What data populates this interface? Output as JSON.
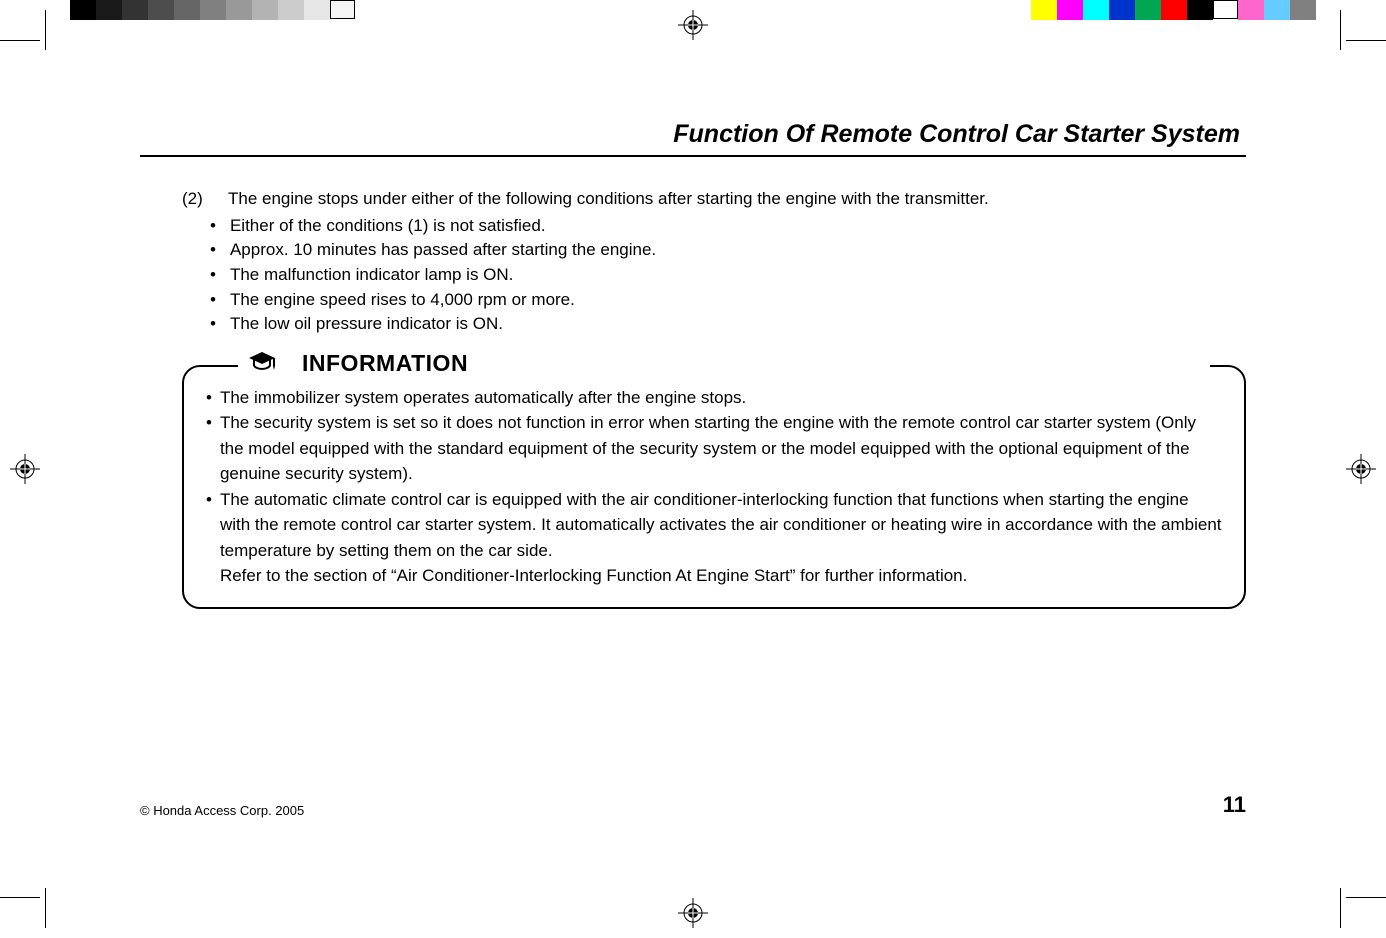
{
  "printMarks": {
    "grayBar": [
      "#000000",
      "#1a1a1a",
      "#333333",
      "#4d4d4d",
      "#666666",
      "#808080",
      "#999999",
      "#b3b3b3",
      "#cccccc",
      "#e6e6e6",
      "#f5f5f5"
    ],
    "grayBarOutlineLast": true,
    "colorBar": [
      "#ffff00",
      "#ff00ff",
      "#00ffff",
      "#0033cc",
      "#00a651",
      "#ff0000",
      "#000000",
      "#ffffff",
      "#ff66cc",
      "#66ccff",
      "#808080"
    ],
    "colorBarOutlineIndex": 7
  },
  "page": {
    "title": "Function Of Remote Control Car Starter System",
    "item": {
      "number": "(2)",
      "text": "The engine stops under either of the following conditions after starting the engine with the transmitter.",
      "bullets": [
        "Either of the conditions (1) is not satisfied.",
        "Approx. 10 minutes has passed after starting the engine.",
        "The malfunction indicator lamp is ON.",
        "The engine speed rises to 4,000 rpm or more.",
        "The low oil pressure indicator is ON."
      ]
    },
    "info": {
      "heading": "INFORMATION",
      "items": [
        "The immobilizer system operates automatically after the engine stops.",
        "The security system is set so it does not function in error when starting the engine with the remote control car starter system (Only the model equipped with the standard equipment of the security system or the model equipped with the optional equipment of the genuine security system).",
        "The automatic climate control car is equipped with the air conditioner-interlocking function that functions when starting the engine with the remote control car starter system. It automatically activates the air conditioner or heating wire in accordance with the ambient temperature by setting them on the car side.\nRefer to the section of “Air Conditioner-Interlocking Function At Engine Start” for further information."
      ]
    },
    "footer": {
      "copyright": "© Honda Access Corp. 2005",
      "pageNumber": "11"
    }
  },
  "style": {
    "titleFontSize": 25,
    "bodyFontSize": 17,
    "infoHeadingFontSize": 23,
    "pageNumFontSize": 22,
    "ruleColor": "#000000",
    "textColor": "#000000",
    "background": "#ffffff",
    "infoBorderRadius": 18,
    "infoBorderWidth": 2
  }
}
